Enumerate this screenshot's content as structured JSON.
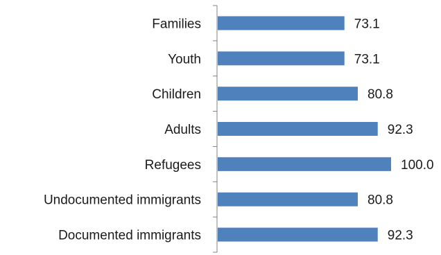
{
  "chart_data": {
    "type": "bar",
    "orientation": "horizontal",
    "categories": [
      "Families",
      "Youth",
      "Children",
      "Adults",
      "Refugees",
      "Undocumented immigrants",
      "Documented immigrants"
    ],
    "values": [
      73.1,
      73.1,
      80.8,
      92.3,
      100.0,
      80.8,
      92.3
    ],
    "value_labels": [
      "73.1",
      "73.1",
      "80.8",
      "92.3",
      "100.0",
      "80.8",
      "92.3"
    ],
    "xlim": [
      0,
      100
    ],
    "grid": false,
    "legend": "none",
    "colors": {
      "bar": "#4f81bd",
      "axis": "#808080",
      "text": "#1a1a1a"
    }
  }
}
